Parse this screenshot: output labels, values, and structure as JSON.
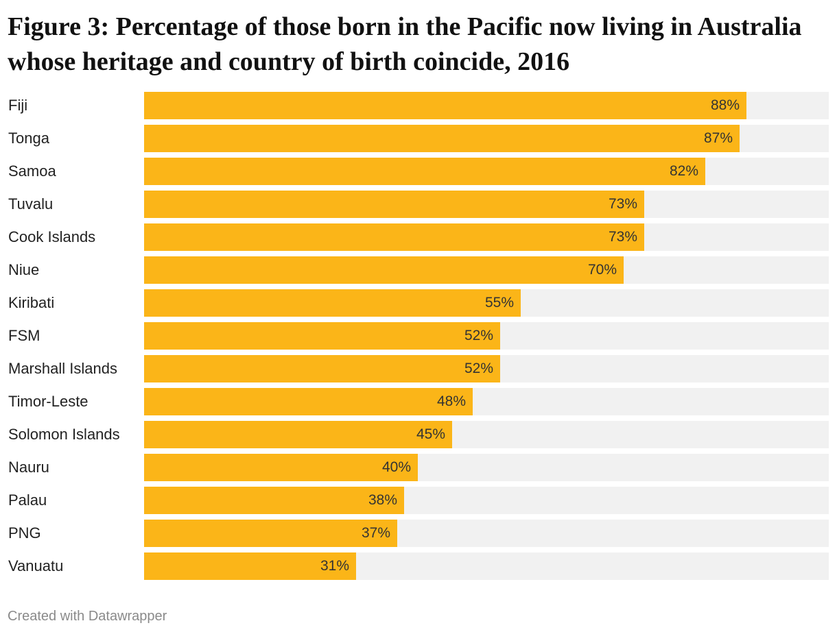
{
  "colors": {
    "bar": "#fbb518",
    "background_bar": "#f1f1f1"
  },
  "chart_data": {
    "type": "bar",
    "orientation": "horizontal",
    "title": "Figure 3: Percentage of those born in the Pacific now living in Australia whose heritage and country of birth coincide, 2016",
    "categories": [
      "Fiji",
      "Tonga",
      "Samoa",
      "Tuvalu",
      "Cook Islands",
      "Niue",
      "Kiribati",
      "FSM",
      "Marshall Islands",
      "Timor-Leste",
      "Solomon Islands",
      "Nauru",
      "Palau",
      "PNG",
      "Vanuatu"
    ],
    "values": [
      88,
      87,
      82,
      73,
      73,
      70,
      55,
      52,
      52,
      48,
      45,
      40,
      38,
      37,
      31
    ],
    "value_labels": [
      "88%",
      "87%",
      "82%",
      "73%",
      "73%",
      "70%",
      "55%",
      "52%",
      "52%",
      "48%",
      "45%",
      "40%",
      "38%",
      "37%",
      "31%"
    ],
    "xlim": [
      0,
      100
    ],
    "grid": false
  },
  "footer": {
    "credit": "Created with Datawrapper"
  }
}
